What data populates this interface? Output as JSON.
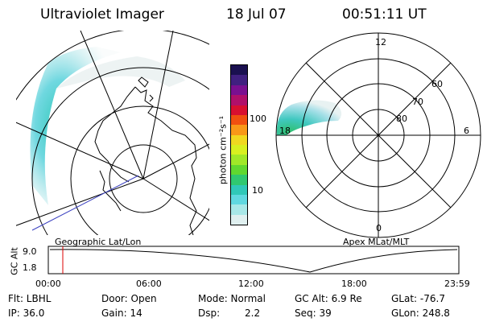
{
  "header": {
    "title": "Ultraviolet Imager",
    "date": "18 Jul 07",
    "time": "00:51:11 UT"
  },
  "colorbar": {
    "label": "photon cm⁻²s⁻¹",
    "ticks": [
      "100",
      "10"
    ],
    "colors": [
      "#1a1050",
      "#402080",
      "#7a1090",
      "#b0106a",
      "#d81030",
      "#f05010",
      "#f89818",
      "#f0d820",
      "#d8f020",
      "#a0e828",
      "#60d830",
      "#30c870",
      "#30c8b8",
      "#60d8e0",
      "#a8e8e8",
      "#e0f0f0"
    ]
  },
  "polar": {
    "mlt_labels": [
      "12",
      "18",
      "6",
      "0"
    ],
    "lat_labels": [
      "60",
      "70",
      "80"
    ]
  },
  "captions": {
    "left_map": "Geographic Lat/Lon",
    "right_map": "Apex MLat/MLT"
  },
  "orbit": {
    "axis_label": "GC Alt",
    "y_ticks": [
      "9.0",
      "1.8"
    ],
    "x_ticks": [
      "00:00",
      "06:00",
      "12:00",
      "18:00",
      "23:59"
    ],
    "marker_color": "#dd0000"
  },
  "info": {
    "flt": "Flt: LBHL",
    "ip": "IP: 36.0",
    "door": "Door: Open",
    "gain": "Gain: 14",
    "mode": "Mode: Normal",
    "dsp_label": "Dsp:",
    "dsp_value": "2.2",
    "gc_alt": "GC Alt: 6.9 Re",
    "seq": "Seq: 39",
    "glat": "GLat: -76.7",
    "glon": "GLon: 248.8"
  }
}
